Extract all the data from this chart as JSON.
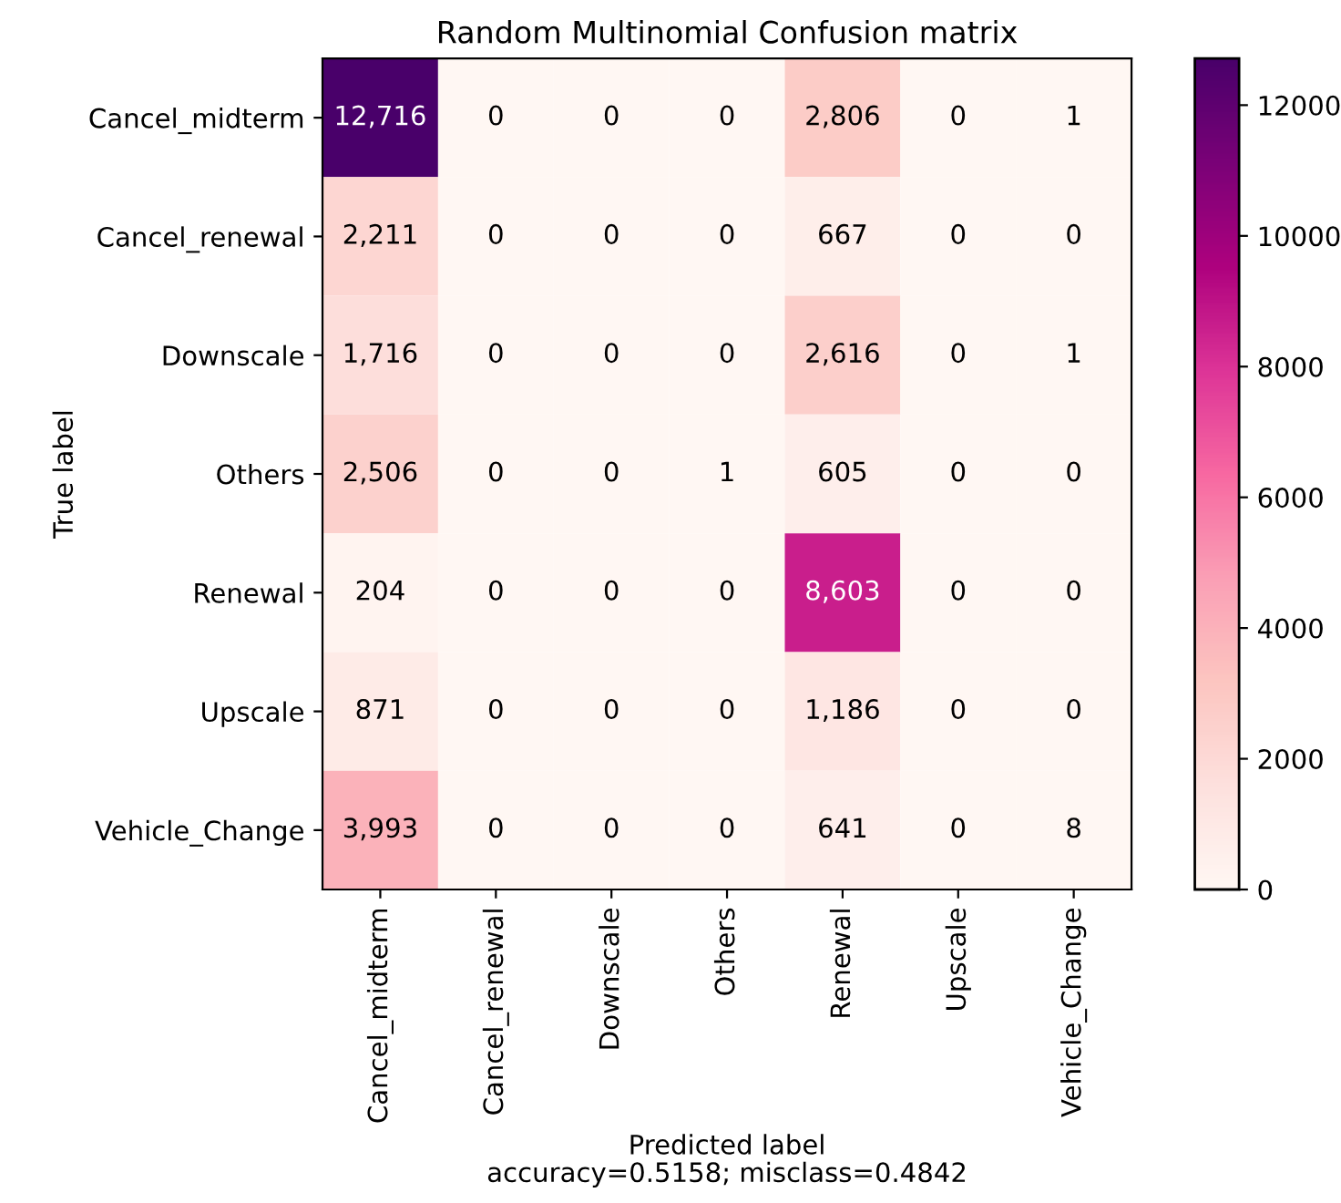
{
  "chart_data": {
    "type": "heatmap",
    "title": "Random Multinomial Confusion matrix",
    "xlabel": "Predicted label\naccuracy=0.5158; misclass=0.4842",
    "ylabel": "True label",
    "categories": [
      "Cancel_midterm",
      "Cancel_renewal",
      "Downscale",
      "Others",
      "Renewal",
      "Upscale",
      "Vehicle_Change"
    ],
    "y_categories": [
      "Cancel_midterm",
      "Cancel_renewal",
      "Downscale",
      "Others",
      "Renewal",
      "Upscale",
      "Vehicle_Change"
    ],
    "cells": [
      [
        12716,
        0,
        0,
        0,
        2806,
        0,
        1
      ],
      [
        2211,
        0,
        0,
        0,
        667,
        0,
        0
      ],
      [
        1716,
        0,
        0,
        0,
        2616,
        0,
        1
      ],
      [
        2506,
        0,
        0,
        1,
        605,
        0,
        0
      ],
      [
        204,
        0,
        0,
        0,
        8603,
        0,
        0
      ],
      [
        871,
        0,
        0,
        0,
        1186,
        0,
        0
      ],
      [
        3993,
        0,
        0,
        0,
        641,
        0,
        8
      ]
    ],
    "cell_labels": [
      [
        "12,716",
        "0",
        "0",
        "0",
        "2,806",
        "0",
        "1"
      ],
      [
        "2,211",
        "0",
        "0",
        "0",
        "667",
        "0",
        "0"
      ],
      [
        "1,716",
        "0",
        "0",
        "0",
        "2,616",
        "0",
        "1"
      ],
      [
        "2,506",
        "0",
        "0",
        "1",
        "605",
        "0",
        "0"
      ],
      [
        "204",
        "0",
        "0",
        "0",
        "8,603",
        "0",
        "0"
      ],
      [
        "871",
        "0",
        "0",
        "0",
        "1,186",
        "0",
        "0"
      ],
      [
        "3,993",
        "0",
        "0",
        "0",
        "641",
        "0",
        "8"
      ]
    ],
    "clim": [
      0,
      12716
    ],
    "cticks": [
      0,
      2000,
      4000,
      6000,
      8000,
      10000,
      12000
    ]
  }
}
